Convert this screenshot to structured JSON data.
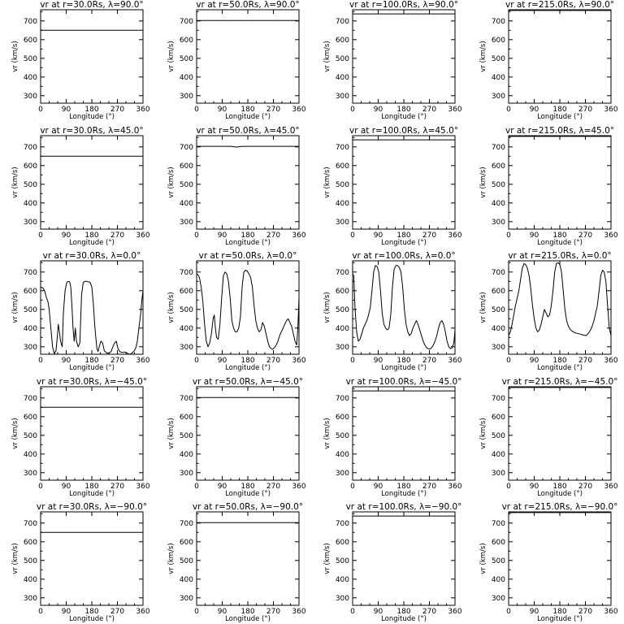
{
  "figure": {
    "xlabel": "Longitude (°)",
    "ylabel": "vr (km/s)",
    "xticks": [
      "0",
      "90",
      "180",
      "270",
      "360"
    ],
    "yticks": [
      "300",
      "400",
      "500",
      "600",
      "700"
    ]
  },
  "chart_data": [
    {
      "type": "line",
      "title": "vr at r=30.0Rs, λ=90.0°",
      "r": "30.0Rs",
      "lat": "90.0°",
      "xlim": [
        0,
        360
      ],
      "ylim": [
        260,
        760
      ],
      "x": [
        0,
        360
      ],
      "y": [
        650,
        650
      ]
    },
    {
      "type": "line",
      "title": "vr at r=50.0Rs, λ=90.0°",
      "r": "50.0Rs",
      "lat": "90.0°",
      "xlim": [
        0,
        360
      ],
      "ylim": [
        260,
        760
      ],
      "x": [
        0,
        360
      ],
      "y": [
        702,
        702
      ]
    },
    {
      "type": "line",
      "title": "vr at r=100.0Rs, λ=90.0°",
      "r": "100.0Rs",
      "lat": "90.0°",
      "xlim": [
        0,
        360
      ],
      "ylim": [
        260,
        760
      ],
      "x": [
        0,
        360
      ],
      "y": [
        738,
        738
      ]
    },
    {
      "type": "line",
      "title": "vr at r=215.0Rs, λ=90.0°",
      "r": "215.0Rs",
      "lat": "90.0°",
      "xlim": [
        0,
        360
      ],
      "ylim": [
        260,
        760
      ],
      "x": [
        0,
        360
      ],
      "y": [
        756,
        756
      ]
    },
    {
      "type": "line",
      "title": "vr at r=30.0Rs, λ=45.0°",
      "r": "30.0Rs",
      "lat": "45.0°",
      "xlim": [
        0,
        360
      ],
      "ylim": [
        260,
        760
      ],
      "x": [
        0,
        360
      ],
      "y": [
        650,
        650
      ]
    },
    {
      "type": "line",
      "title": "vr at r=50.0Rs, λ=45.0°",
      "r": "50.0Rs",
      "lat": "45.0°",
      "xlim": [
        0,
        360
      ],
      "ylim": [
        260,
        760
      ],
      "x": [
        0,
        120,
        140,
        160,
        360
      ],
      "y": [
        703,
        703,
        699,
        703,
        703
      ]
    },
    {
      "type": "line",
      "title": "vr at r=100.0Rs, λ=45.0°",
      "r": "100.0Rs",
      "lat": "45.0°",
      "xlim": [
        0,
        360
      ],
      "ylim": [
        260,
        760
      ],
      "x": [
        0,
        360
      ],
      "y": [
        738,
        738
      ]
    },
    {
      "type": "line",
      "title": "vr at r=215.0Rs, λ=45.0°",
      "r": "215.0Rs",
      "lat": "45.0°",
      "xlim": [
        0,
        360
      ],
      "ylim": [
        260,
        760
      ],
      "x": [
        0,
        360
      ],
      "y": [
        756,
        756
      ]
    },
    {
      "type": "line",
      "title": "vr at r=30.0Rs, λ=0.0°",
      "r": "30.0Rs",
      "lat": "0.0°",
      "xlim": [
        0,
        360
      ],
      "ylim": [
        260,
        760
      ],
      "x": [
        0,
        3,
        8,
        14,
        20,
        26,
        30,
        36,
        42,
        48,
        54,
        58,
        62,
        66,
        70,
        76,
        80,
        86,
        92,
        98,
        102,
        106,
        110,
        114,
        118,
        122,
        126,
        132,
        138,
        144,
        150,
        156,
        162,
        168,
        174,
        180,
        186,
        190,
        194,
        198,
        202,
        206,
        212,
        218,
        224,
        230,
        236,
        242,
        248,
        254,
        260,
        266,
        272,
        278,
        284,
        290,
        296,
        300,
        306,
        312,
        318,
        324,
        330,
        336,
        340,
        344,
        348,
        352,
        356,
        360
      ],
      "y": [
        620,
        618,
        615,
        600,
        565,
        540,
        500,
        400,
        300,
        262,
        280,
        340,
        420,
        380,
        330,
        300,
        480,
        600,
        645,
        650,
        648,
        620,
        520,
        400,
        330,
        400,
        330,
        300,
        320,
        580,
        645,
        650,
        650,
        648,
        645,
        620,
        520,
        420,
        350,
        290,
        275,
        300,
        330,
        320,
        278,
        270,
        265,
        268,
        275,
        300,
        320,
        330,
        290,
        275,
        270,
        270,
        272,
        270,
        265,
        260,
        262,
        270,
        280,
        300,
        330,
        380,
        430,
        480,
        550,
        600
      ]
    },
    {
      "type": "line",
      "title": "vr at r=50.0Rs, λ=0.0°",
      "r": "50.0Rs",
      "lat": "0.0°",
      "xlim": [
        0,
        360
      ],
      "ylim": [
        260,
        760
      ],
      "x": [
        0,
        5,
        10,
        16,
        22,
        28,
        34,
        40,
        46,
        52,
        58,
        62,
        66,
        70,
        76,
        82,
        88,
        94,
        100,
        106,
        112,
        118,
        124,
        130,
        136,
        142,
        148,
        154,
        160,
        166,
        172,
        178,
        184,
        190,
        196,
        202,
        208,
        214,
        220,
        226,
        232,
        238,
        244,
        250,
        256,
        262,
        268,
        274,
        280,
        286,
        292,
        298,
        304,
        310,
        316,
        322,
        328,
        334,
        340,
        346,
        352,
        356,
        360
      ],
      "y": [
        690,
        685,
        670,
        620,
        540,
        420,
        330,
        300,
        320,
        370,
        450,
        470,
        400,
        350,
        340,
        420,
        560,
        680,
        700,
        690,
        650,
        560,
        440,
        400,
        380,
        380,
        400,
        460,
        620,
        700,
        710,
        705,
        690,
        670,
        620,
        520,
        440,
        400,
        380,
        390,
        430,
        410,
        370,
        330,
        300,
        290,
        288,
        295,
        310,
        330,
        360,
        380,
        400,
        420,
        440,
        450,
        430,
        410,
        370,
        330,
        310,
        400,
        560
      ]
    },
    {
      "type": "line",
      "title": "vr at r=100.0Rs, λ=0.0°",
      "r": "100.0Rs",
      "lat": "0.0°",
      "xlim": [
        0,
        360
      ],
      "ylim": [
        260,
        760
      ],
      "x": [
        0,
        4,
        8,
        14,
        20,
        26,
        32,
        38,
        44,
        50,
        56,
        62,
        68,
        74,
        80,
        86,
        92,
        98,
        104,
        110,
        116,
        122,
        128,
        134,
        140,
        146,
        152,
        158,
        164,
        170,
        176,
        182,
        188,
        194,
        200,
        206,
        212,
        218,
        224,
        230,
        236,
        242,
        248,
        254,
        260,
        266,
        272,
        278,
        284,
        290,
        296,
        302,
        308,
        314,
        320,
        326,
        332,
        338,
        344,
        350,
        356,
        360
      ],
      "y": [
        690,
        680,
        520,
        380,
        330,
        340,
        370,
        400,
        420,
        440,
        470,
        510,
        600,
        700,
        735,
        730,
        700,
        600,
        480,
        420,
        400,
        390,
        400,
        470,
        620,
        715,
        735,
        735,
        725,
        700,
        620,
        500,
        420,
        380,
        360,
        370,
        400,
        420,
        440,
        420,
        390,
        360,
        330,
        310,
        295,
        290,
        288,
        295,
        310,
        330,
        360,
        400,
        430,
        440,
        420,
        380,
        330,
        300,
        290,
        295,
        320,
        390
      ]
    },
    {
      "type": "line",
      "title": "vr at r=215.0Rs, λ=0.0°",
      "r": "215.0Rs",
      "lat": "0.0°",
      "xlim": [
        0,
        360
      ],
      "ylim": [
        260,
        760
      ],
      "x": [
        0,
        6,
        12,
        18,
        24,
        30,
        36,
        42,
        48,
        54,
        60,
        66,
        72,
        78,
        84,
        90,
        96,
        102,
        108,
        114,
        120,
        126,
        132,
        138,
        144,
        150,
        156,
        162,
        168,
        174,
        180,
        186,
        192,
        198,
        204,
        210,
        216,
        222,
        228,
        234,
        240,
        246,
        252,
        258,
        264,
        270,
        276,
        282,
        288,
        294,
        300,
        306,
        312,
        318,
        324,
        330,
        336,
        342,
        348,
        354,
        360
      ],
      "y": [
        360,
        380,
        420,
        470,
        520,
        560,
        600,
        660,
        720,
        745,
        740,
        720,
        680,
        610,
        520,
        450,
        400,
        380,
        390,
        420,
        460,
        500,
        480,
        460,
        470,
        520,
        600,
        700,
        745,
        750,
        740,
        700,
        600,
        500,
        440,
        410,
        395,
        385,
        380,
        375,
        372,
        370,
        368,
        365,
        362,
        360,
        365,
        375,
        390,
        410,
        440,
        480,
        520,
        600,
        680,
        710,
        700,
        650,
        520,
        400,
        360
      ]
    },
    {
      "type": "line",
      "title": "vr at r=30.0Rs, λ=−45.0°",
      "r": "30.0Rs",
      "lat": "−45.0°",
      "xlim": [
        0,
        360
      ],
      "ylim": [
        260,
        760
      ],
      "x": [
        0,
        360
      ],
      "y": [
        650,
        650
      ]
    },
    {
      "type": "line",
      "title": "vr at r=50.0Rs, λ=−45.0°",
      "r": "50.0Rs",
      "lat": "−45.0°",
      "xlim": [
        0,
        360
      ],
      "ylim": [
        260,
        760
      ],
      "x": [
        0,
        360
      ],
      "y": [
        702,
        702
      ]
    },
    {
      "type": "line",
      "title": "vr at r=100.0Rs, λ=−45.0°",
      "r": "100.0Rs",
      "lat": "−45.0°",
      "xlim": [
        0,
        360
      ],
      "ylim": [
        260,
        760
      ],
      "x": [
        0,
        360
      ],
      "y": [
        738,
        738
      ]
    },
    {
      "type": "line",
      "title": "vr at r=215.0Rs, λ=−45.0°",
      "r": "215.0Rs",
      "lat": "−45.0°",
      "xlim": [
        0,
        360
      ],
      "ylim": [
        260,
        760
      ],
      "x": [
        0,
        360
      ],
      "y": [
        756,
        756
      ]
    },
    {
      "type": "line",
      "title": "vr at r=30.0Rs, λ=−90.0°",
      "r": "30.0Rs",
      "lat": "−90.0°",
      "xlim": [
        0,
        360
      ],
      "ylim": [
        260,
        760
      ],
      "x": [
        0,
        360
      ],
      "y": [
        650,
        650
      ]
    },
    {
      "type": "line",
      "title": "vr at r=50.0Rs, λ=−90.0°",
      "r": "50.0Rs",
      "lat": "−90.0°",
      "xlim": [
        0,
        360
      ],
      "ylim": [
        260,
        760
      ],
      "x": [
        0,
        360
      ],
      "y": [
        702,
        702
      ]
    },
    {
      "type": "line",
      "title": "vr at r=100.0Rs, λ=−90.0°",
      "r": "100.0Rs",
      "lat": "−90.0°",
      "xlim": [
        0,
        360
      ],
      "ylim": [
        260,
        760
      ],
      "x": [
        0,
        360
      ],
      "y": [
        738,
        738
      ]
    },
    {
      "type": "line",
      "title": "vr at r=215.0Rs, λ=−90.0°",
      "r": "215.0Rs",
      "lat": "−90.0°",
      "xlim": [
        0,
        360
      ],
      "ylim": [
        260,
        760
      ],
      "x": [
        0,
        360
      ],
      "y": [
        756,
        756
      ]
    }
  ]
}
